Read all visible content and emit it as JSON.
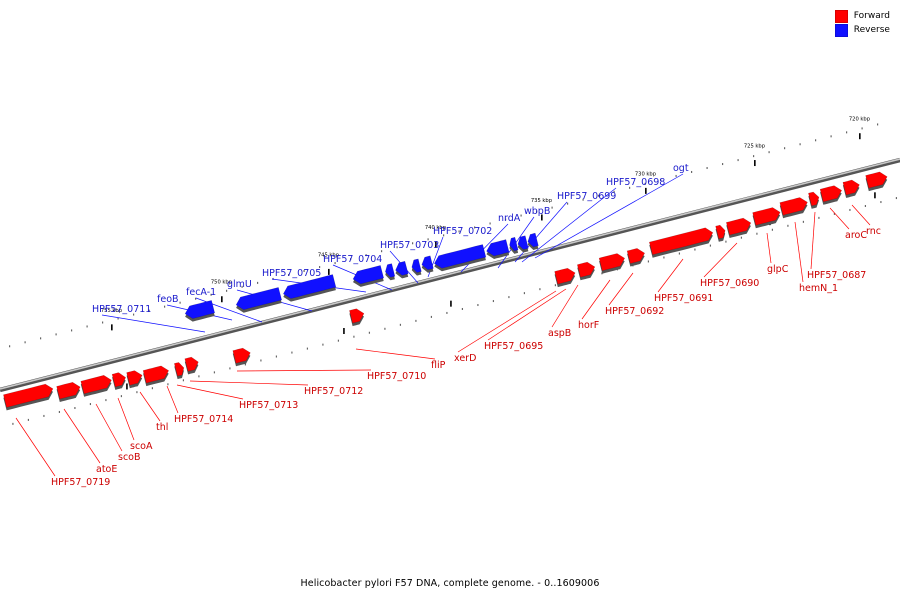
{
  "caption": "Helicobacter pylori F57 DNA, complete genome. - 0..1609006",
  "colors": {
    "forward": "#ff0000",
    "reverse": "#1010ff",
    "forward_label": "#cc0000",
    "reverse_label": "#1a1acc",
    "backbone": "#777777"
  },
  "legend": [
    {
      "label": "Forward",
      "color": "#ff0000"
    },
    {
      "label": "Reverse",
      "color": "#1010ff"
    }
  ],
  "ticks": [
    "720 kbp",
    "725 kbp",
    "730 kbp",
    "735 kbp",
    "740 kbp",
    "745 kbp",
    "750 kbp",
    "755 kbp"
  ],
  "reverse_genes": [
    "HPF57_0711",
    "feoB",
    "fecA-1",
    "glmU",
    "HPF57_0705",
    "HPF57_0704",
    "HPF57_0703",
    "HPF57_0702",
    "nrdA",
    "wbpB",
    "HPF57_0699",
    "HPF57_0698",
    "ogt"
  ],
  "forward_genes": [
    "rnc",
    "aroC",
    "HPF57_0687",
    "hemN_1",
    "glpC",
    "HPF57_0690",
    "HPF57_0691",
    "HPF57_0692",
    "horF",
    "aspB",
    "HPF57_0695",
    "xerD",
    "fliP",
    "HPF57_0710",
    "HPF57_0712",
    "HPF57_0713",
    "HPF57_0714",
    "thl",
    "scoA",
    "scoB",
    "atoE",
    "HPF57_0719"
  ]
}
